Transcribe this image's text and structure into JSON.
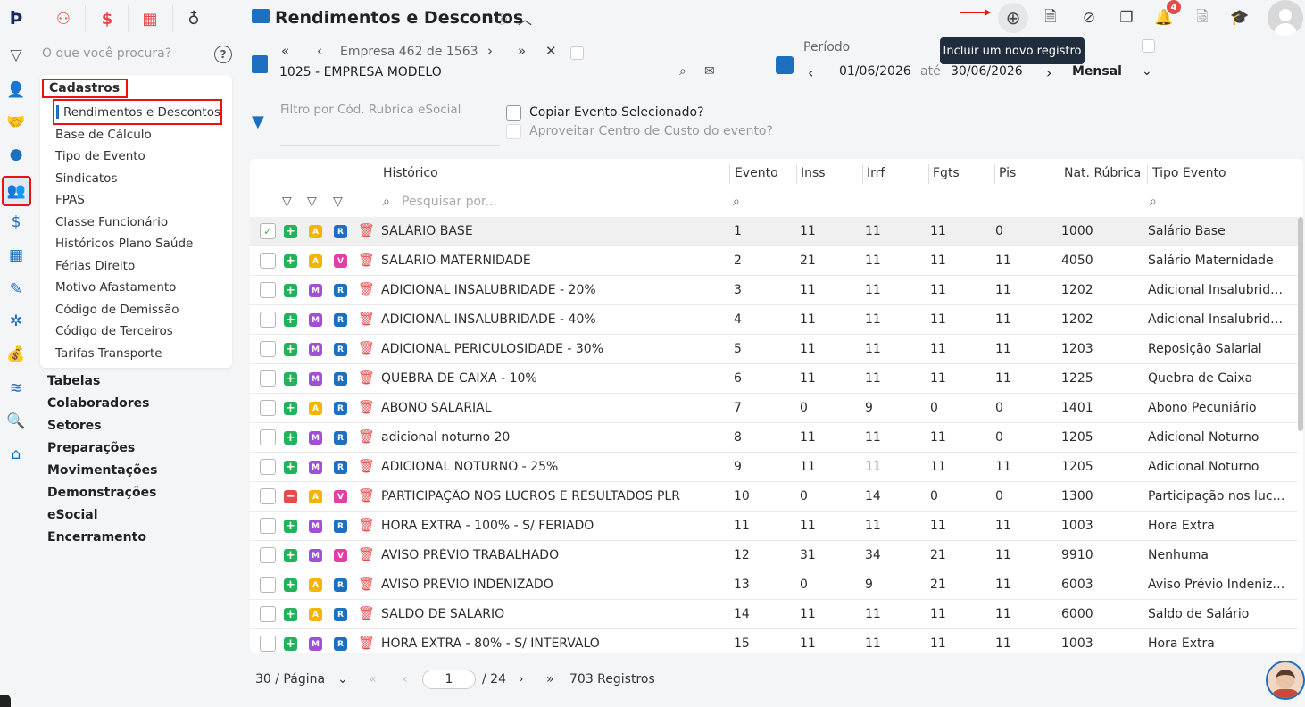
{
  "sidebar": {
    "search_placeholder": "O que você procura?",
    "help": "?",
    "cadastros_title": "Cadastros",
    "cadastros_items": [
      "Rendimentos e Descontos",
      "Base de Cálculo",
      "Tipo de Evento",
      "Sindicatos",
      "FPAS",
      "Classe Funcionário",
      "Históricos Plano Saúde",
      "Férias Direito",
      "Motivo Afastamento",
      "Código de Demissão",
      "Código de Terceiros",
      "Tarifas Transporte"
    ],
    "main_items": [
      "Tabelas",
      "Colaboradores",
      "Setores",
      "Preparações",
      "Movimentações",
      "Demonstrações",
      "eSocial",
      "Encerramento"
    ]
  },
  "header": {
    "title": "Rendimentos e Descontos",
    "tooltip": "Incluir um novo registro",
    "notif_count": "4"
  },
  "empresa": {
    "position": "Empresa 462 de 1563",
    "name": "1025 - EMPRESA MODELO"
  },
  "periodo": {
    "label": "Período",
    "start": "01/06/2026",
    "ate": "até",
    "end": "30/06/2026",
    "mode": "Mensal"
  },
  "filter": {
    "placeholder": "Filtro por Cód. Rubrica eSocial",
    "copiar": "Copiar Evento Selecionado?",
    "aproveitar": "Aproveitar Centro de Custo do evento?"
  },
  "table": {
    "columns": [
      "Histórico",
      "Evento",
      "Inss",
      "Irrf",
      "Fgts",
      "Pis",
      "Nat. Rúbrica",
      "Tipo Evento"
    ],
    "search_placeholder": "Pesquisar por...",
    "rows": [
      {
        "tag1": "A",
        "tag2": "R",
        "historico": "SALÁRIO BASE",
        "evento": "1",
        "inss": "11",
        "irrf": "11",
        "fgts": "11",
        "pis": "0",
        "nat": "1000",
        "tipo": "Salário Base"
      },
      {
        "tag1": "A",
        "tag2": "V",
        "historico": "SALÁRIO MATERNIDADE",
        "evento": "2",
        "inss": "21",
        "irrf": "11",
        "fgts": "11",
        "pis": "11",
        "nat": "4050",
        "tipo": "Salário Maternidade"
      },
      {
        "tag1": "M",
        "tag2": "R",
        "historico": "ADICIONAL INSALUBRIDADE - 20%",
        "evento": "3",
        "inss": "11",
        "irrf": "11",
        "fgts": "11",
        "pis": "11",
        "nat": "1202",
        "tipo": "Adicional Insalubridade"
      },
      {
        "tag1": "M",
        "tag2": "R",
        "historico": "ADICIONAL INSALUBRIDADE - 40%",
        "evento": "4",
        "inss": "11",
        "irrf": "11",
        "fgts": "11",
        "pis": "11",
        "nat": "1202",
        "tipo": "Adicional Insalubridade"
      },
      {
        "tag1": "M",
        "tag2": "R",
        "historico": "ADICIONAL PERICULOSIDADE - 30%",
        "evento": "5",
        "inss": "11",
        "irrf": "11",
        "fgts": "11",
        "pis": "11",
        "nat": "1203",
        "tipo": "Reposição Salarial"
      },
      {
        "tag1": "M",
        "tag2": "R",
        "historico": "QUEBRA DE CAIXA - 10%",
        "evento": "6",
        "inss": "11",
        "irrf": "11",
        "fgts": "11",
        "pis": "11",
        "nat": "1225",
        "tipo": "Quebra de Caixa"
      },
      {
        "tag1": "A",
        "tag2": "R",
        "historico": "ABONO SALARIAL",
        "evento": "7",
        "inss": "0",
        "irrf": "9",
        "fgts": "0",
        "pis": "0",
        "nat": "1401",
        "tipo": "Abono Pecuniário"
      },
      {
        "tag1": "M",
        "tag2": "R",
        "historico": "adicional noturno 20",
        "evento": "8",
        "inss": "11",
        "irrf": "11",
        "fgts": "11",
        "pis": "0",
        "nat": "1205",
        "tipo": "Adicional Noturno"
      },
      {
        "tag1": "M",
        "tag2": "R",
        "historico": "ADICIONAL NOTURNO - 25%",
        "evento": "9",
        "inss": "11",
        "irrf": "11",
        "fgts": "11",
        "pis": "11",
        "nat": "1205",
        "tipo": "Adicional Noturno"
      },
      {
        "tag1": "A",
        "tag2": "V",
        "historico": "PARTICIPAÇÃO NOS LUCROS E RESULTADOS PLR",
        "evento": "10",
        "inss": "0",
        "irrf": "14",
        "fgts": "0",
        "pis": "0",
        "nat": "1300",
        "tipo": "Participação nos lucros"
      },
      {
        "tag1": "M",
        "tag2": "R",
        "historico": "HORA EXTRA - 100% - S/ FERIADO",
        "evento": "11",
        "inss": "11",
        "irrf": "11",
        "fgts": "11",
        "pis": "11",
        "nat": "1003",
        "tipo": "Hora Extra"
      },
      {
        "tag1": "M",
        "tag2": "V",
        "historico": "AVISO PRÉVIO TRABALHADO",
        "evento": "12",
        "inss": "31",
        "irrf": "34",
        "fgts": "21",
        "pis": "11",
        "nat": "9910",
        "tipo": "Nenhuma"
      },
      {
        "tag1": "A",
        "tag2": "R",
        "historico": "AVISO PRÉVIO INDENIZADO",
        "evento": "13",
        "inss": "0",
        "irrf": "9",
        "fgts": "21",
        "pis": "11",
        "nat": "6003",
        "tipo": "Aviso Prévio Indenizado"
      },
      {
        "tag1": "A",
        "tag2": "R",
        "historico": "SALDO DE SALÁRIO",
        "evento": "14",
        "inss": "11",
        "irrf": "11",
        "fgts": "11",
        "pis": "11",
        "nat": "6000",
        "tipo": "Saldo de Salário"
      },
      {
        "tag1": "M",
        "tag2": "R",
        "historico": "HORA EXTRA - 80% - S/ INTERVALO",
        "evento": "15",
        "inss": "11",
        "irrf": "11",
        "fgts": "11",
        "pis": "11",
        "nat": "1003",
        "tipo": "Hora Extra"
      }
    ]
  },
  "pager": {
    "per_page": "30 / Página",
    "page": "1",
    "total_pages": "/ 24",
    "records": "703 Registros"
  }
}
